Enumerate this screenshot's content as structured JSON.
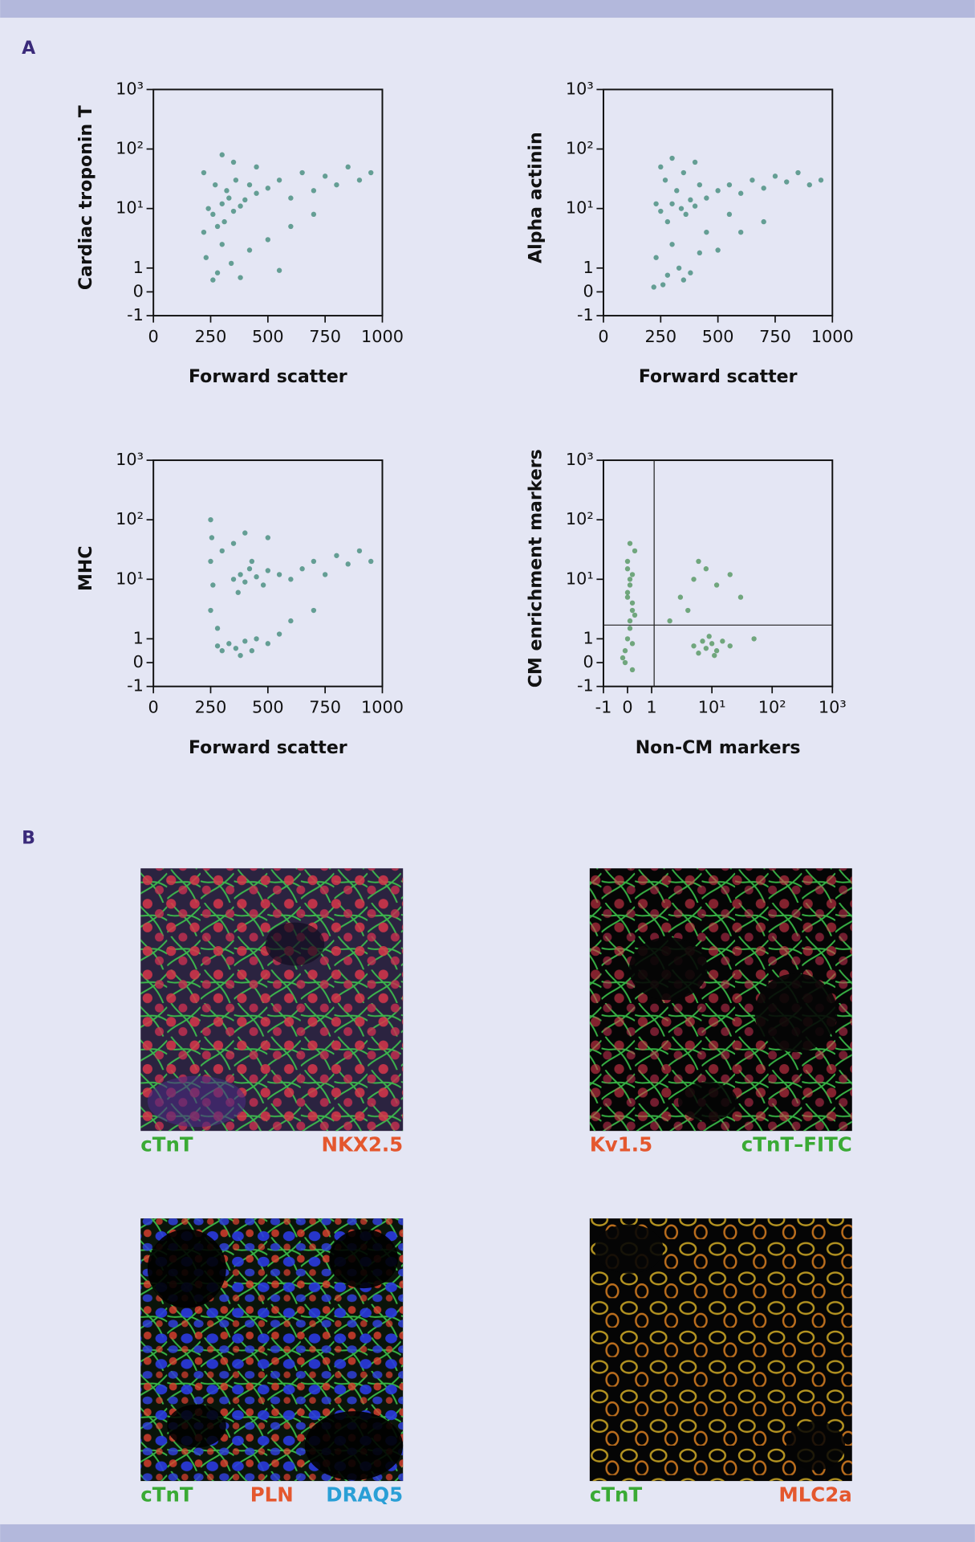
{
  "panel_labels": [
    "A",
    "B"
  ],
  "chart_data": [
    {
      "type": "scatter",
      "xlabel": "Forward scatter",
      "ylabel": "Cardiac troponin T",
      "xscale": "linear",
      "yscale": "biexponential",
      "xlim": [
        0,
        1000
      ],
      "ylim": [
        -1,
        1000
      ],
      "xticks": [
        0,
        250,
        500,
        750,
        1000
      ],
      "yticks": [
        -1,
        0,
        1,
        {
          "value": 10,
          "label": "10¹"
        },
        {
          "value": 100,
          "label": "10²"
        },
        {
          "value": 1000,
          "label": "10³"
        }
      ],
      "color": "#2e7f6b",
      "x": [
        260,
        300,
        330,
        350,
        380,
        320,
        280,
        400,
        420,
        360,
        310,
        450,
        240,
        220,
        270,
        500,
        550,
        600,
        650,
        700,
        750,
        800,
        850,
        900,
        950,
        230,
        280,
        340,
        380,
        420,
        300,
        260,
        500,
        600,
        700,
        350,
        300,
        450,
        220,
        550
      ],
      "values": [
        8,
        12,
        15,
        9,
        11,
        20,
        5,
        14,
        25,
        30,
        6,
        18,
        10,
        4,
        25,
        22,
        30,
        15,
        40,
        20,
        35,
        25,
        50,
        30,
        40,
        1.5,
        0.8,
        1.2,
        0.6,
        2,
        2.5,
        0.5,
        3,
        5,
        8,
        60,
        80,
        50,
        40,
        0.9
      ]
    },
    {
      "type": "scatter",
      "xlabel": "Forward scatter",
      "ylabel": "Alpha actinin",
      "xscale": "linear",
      "yscale": "biexponential",
      "xlim": [
        0,
        1000
      ],
      "ylim": [
        -1,
        1000
      ],
      "xticks": [
        0,
        250,
        500,
        750,
        1000
      ],
      "yticks": [
        -1,
        0,
        1,
        {
          "value": 10,
          "label": "10¹"
        },
        {
          "value": 100,
          "label": "10²"
        },
        {
          "value": 1000,
          "label": "10³"
        }
      ],
      "color": "#2e7f6b",
      "x": [
        250,
        300,
        340,
        380,
        360,
        400,
        320,
        280,
        420,
        450,
        230,
        270,
        350,
        500,
        550,
        600,
        650,
        700,
        750,
        800,
        850,
        900,
        950,
        230,
        280,
        330,
        380,
        420,
        260,
        300,
        500,
        600,
        700,
        300,
        250,
        400,
        450,
        220,
        350,
        550
      ],
      "values": [
        9,
        12,
        10,
        14,
        8,
        11,
        20,
        6,
        25,
        15,
        12,
        30,
        40,
        20,
        25,
        18,
        30,
        22,
        35,
        28,
        40,
        25,
        30,
        1.5,
        0.7,
        1,
        0.8,
        1.8,
        0.3,
        2.5,
        2,
        4,
        6,
        70,
        50,
        60,
        4,
        0.2,
        0.5,
        8
      ]
    },
    {
      "type": "scatter",
      "xlabel": "Forward scatter",
      "ylabel": "MHC",
      "xscale": "linear",
      "yscale": "biexponential",
      "xlim": [
        0,
        1000
      ],
      "ylim": [
        -1,
        1000
      ],
      "xticks": [
        0,
        250,
        500,
        750,
        1000
      ],
      "yticks": [
        -1,
        0,
        1,
        {
          "value": 10,
          "label": "10¹"
        },
        {
          "value": 100,
          "label": "10²"
        },
        {
          "value": 1000,
          "label": "10³"
        }
      ],
      "color": "#2e7f6b",
      "x": [
        250,
        255,
        250,
        260,
        250,
        350,
        380,
        400,
        420,
        450,
        370,
        430,
        480,
        500,
        550,
        600,
        650,
        700,
        750,
        800,
        850,
        900,
        950,
        280,
        300,
        330,
        360,
        400,
        430,
        450,
        380,
        500,
        550,
        600,
        350,
        400,
        500,
        300,
        700,
        280
      ],
      "values": [
        100,
        50,
        20,
        8,
        3,
        10,
        12,
        9,
        15,
        11,
        6,
        20,
        8,
        14,
        12,
        10,
        15,
        20,
        12,
        25,
        18,
        30,
        20,
        0.7,
        0.5,
        0.8,
        0.6,
        0.9,
        0.5,
        1,
        0.3,
        0.8,
        1.2,
        2,
        40,
        60,
        50,
        30,
        3,
        1.5
      ]
    },
    {
      "type": "scatter",
      "xlabel": "Non-CM markers",
      "ylabel": "CM enrichment markers",
      "xscale": "biexponential",
      "yscale": "biexponential",
      "xlim": [
        -1,
        1000
      ],
      "ylim": [
        -1,
        1000
      ],
      "xticks": [
        -1,
        0,
        1,
        {
          "value": 10,
          "label": "10¹"
        },
        {
          "value": 100,
          "label": "10²"
        },
        {
          "value": 1000,
          "label": "10³"
        }
      ],
      "yticks": [
        -1,
        0,
        1,
        {
          "value": 10,
          "label": "10¹"
        },
        {
          "value": 100,
          "label": "10²"
        },
        {
          "value": 1000,
          "label": "10³"
        }
      ],
      "color": "#3f8a4a",
      "quadrant": {
        "x": 1.1,
        "y": 1.7
      },
      "x": [
        -0.1,
        0,
        0.1,
        0.2,
        0,
        0.1,
        0.2,
        0,
        0.3,
        -0.2,
        0.1,
        0.2,
        0,
        0.1,
        -0.1,
        0.2,
        0.3,
        0,
        0.1,
        0.2,
        5,
        7,
        8,
        10,
        12,
        9,
        6,
        15,
        20,
        11,
        3,
        5,
        8,
        12,
        20,
        4,
        6,
        30,
        2,
        50
      ],
      "values": [
        0.5,
        1,
        2,
        3,
        5,
        8,
        12,
        20,
        30,
        0.2,
        1.5,
        4,
        6,
        10,
        0,
        0.8,
        2.5,
        15,
        40,
        -0.3,
        0.7,
        0.9,
        0.6,
        0.8,
        0.5,
        1.1,
        0.4,
        0.9,
        0.7,
        0.3,
        5,
        10,
        15,
        8,
        12,
        3,
        20,
        5,
        2,
        1
      ]
    }
  ],
  "micrographs": [
    {
      "labels": [
        {
          "text": "cTnT",
          "color": "#3aaa35"
        },
        {
          "text": "NKX2.5",
          "color": "#e4572e"
        }
      ]
    },
    {
      "labels": [
        {
          "text": "Kv1.5",
          "color": "#e4572e"
        },
        {
          "text": "cTnT–FITC",
          "color": "#3aaa35"
        }
      ]
    },
    {
      "labels": [
        {
          "text": "cTnT",
          "color": "#3aaa35"
        },
        {
          "text": "PLN",
          "color": "#e4572e"
        },
        {
          "text": "DRAQ5",
          "color": "#2a9fd6"
        }
      ]
    },
    {
      "labels": [
        {
          "text": "cTnT",
          "color": "#3aaa35"
        },
        {
          "text": "MLC2a",
          "color": "#e4572e"
        }
      ]
    }
  ]
}
